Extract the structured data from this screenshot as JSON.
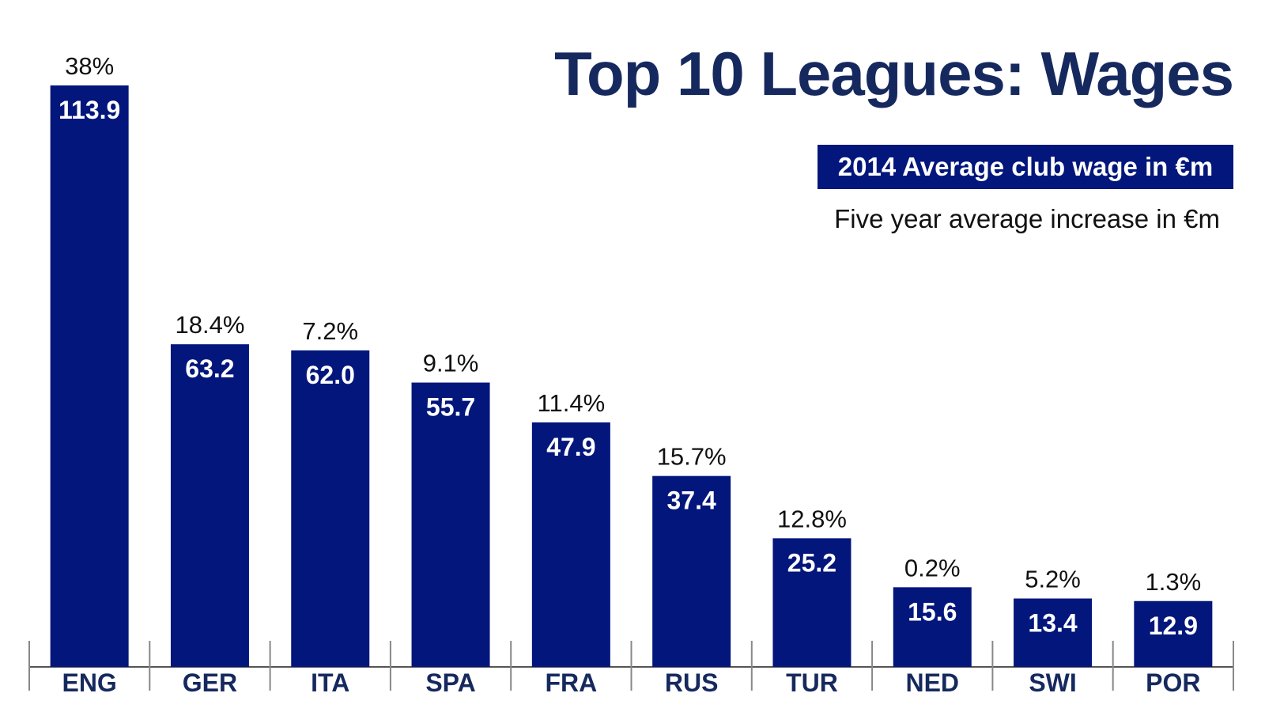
{
  "chart_data": {
    "type": "bar",
    "title": "Top 10 Leagues: Wages",
    "legend": {
      "primary": "2014 Average club wage in €m",
      "secondary": "Five year average increase in €m"
    },
    "categories": [
      "ENG",
      "GER",
      "ITA",
      "SPA",
      "FRA",
      "RUS",
      "TUR",
      "NED",
      "SWI",
      "POR"
    ],
    "values": [
      113.9,
      63.2,
      62.0,
      55.7,
      47.9,
      37.4,
      25.2,
      15.6,
      13.4,
      12.9
    ],
    "value_labels": [
      "113.9",
      "63.2",
      "62.0",
      "55.7",
      "47.9",
      "37.4",
      "25.2",
      "15.6",
      "13.4",
      "12.9"
    ],
    "increase_labels": [
      "38%",
      "18.4%",
      "7.2%",
      "9.1%",
      "11.4%",
      "15.7%",
      "12.8%",
      "0.2%",
      "5.2%",
      "1.3%"
    ],
    "ylim": [
      0,
      113.9
    ],
    "grid": false,
    "colors": {
      "bar": "#02167c",
      "title": "#16295e",
      "category_label": "#16295e",
      "axis": "#555555"
    }
  }
}
